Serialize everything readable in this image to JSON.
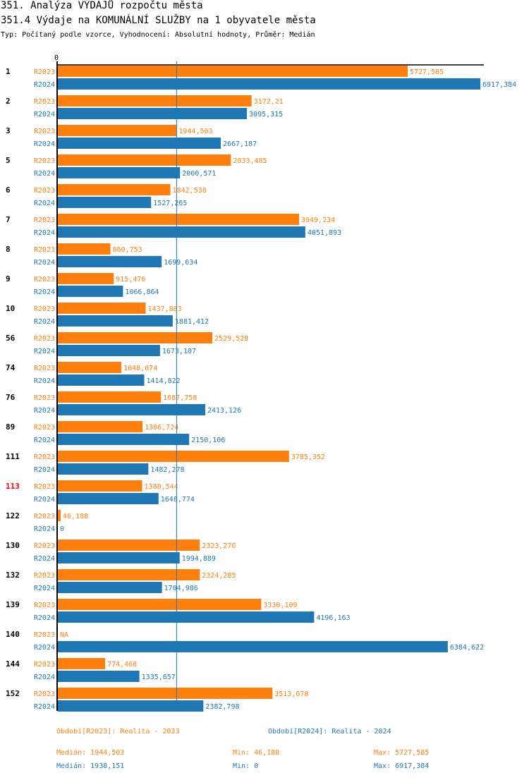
{
  "header": {
    "title": "351. Analýza VÝDAJŮ rozpočtu města",
    "subtitle": "351.4 Výdaje na KOMUNÁLNÍ SLUŽBY na 1 obyvatele města",
    "info": "Typ: Počítaný podle vzorce, Vyhodnocení: Absolutní hodnoty, Průměr: Medián"
  },
  "colors": {
    "r2023": "#ff7f0e",
    "r2024": "#1f77b4",
    "highlight": "#ff0000",
    "axis": "#000000"
  },
  "chart_data": {
    "type": "bar",
    "orientation": "horizontal",
    "title": "351.4 Výdaje na KOMUNÁLNÍ SLUŽBY na 1 obyvatele města",
    "xlabel": "",
    "ylabel": "",
    "x_tick_labels": [
      "0"
    ],
    "xlim": [
      0,
      6917.384
    ],
    "median_line": 1944.503,
    "highlighted_category": "113",
    "categories": [
      "1",
      "2",
      "3",
      "5",
      "6",
      "7",
      "8",
      "9",
      "10",
      "56",
      "74",
      "76",
      "89",
      "111",
      "113",
      "122",
      "130",
      "132",
      "139",
      "140",
      "144",
      "152"
    ],
    "series": [
      {
        "name": "R2023",
        "values": [
          5727.585,
          3172.21,
          1944.503,
          2833.485,
          1842.538,
          3949.234,
          860.753,
          915.476,
          1437.883,
          2529.528,
          1040.074,
          1687.758,
          1386.724,
          3785.352,
          1380.544,
          46.188,
          2323.276,
          2324.285,
          3330.109,
          null,
          774.468,
          3513.678
        ],
        "labels": [
          "5727,585",
          "3172,21",
          "1944,503",
          "2833,485",
          "1842,538",
          "3949,234",
          "860,753",
          "915,476",
          "1437,883",
          "2529,528",
          "1040,074",
          "1687,758",
          "1386,724",
          "3785,352",
          "1380,544",
          "46,188",
          "2323,276",
          "2324,285",
          "3330,109",
          "NA",
          "774,468",
          "3513,678"
        ]
      },
      {
        "name": "R2024",
        "values": [
          6917.384,
          3095.315,
          2667.187,
          2000.571,
          1527.265,
          4051.893,
          1699.634,
          1066.864,
          1881.412,
          1673.107,
          1414.822,
          2413.126,
          2150.106,
          1482.278,
          1648.774,
          0,
          1994.889,
          1704.986,
          4196.163,
          6384.622,
          1335.657,
          2382.798
        ],
        "labels": [
          "6917,384",
          "3095,315",
          "2667,187",
          "2000,571",
          "1527,265",
          "4051,893",
          "1699,634",
          "1066,864",
          "1881,412",
          "1673,107",
          "1414,822",
          "2413,126",
          "2150,106",
          "1482,278",
          "1648,774",
          "0",
          "1994,889",
          "1704,986",
          "4196,163",
          "6384,622",
          "1335,657",
          "2382,798"
        ]
      }
    ],
    "legend": {
      "r2023": "Období[R2023]: Realita - 2023",
      "r2024": "Období[R2024]: Realita - 2024",
      "placement": "bottom"
    },
    "stats": {
      "r2023": {
        "median": "Medián: 1944,503",
        "min": "Min: 46,188",
        "max": "Max: 5727,585"
      },
      "r2024": {
        "median": "Medián: 1938,151",
        "min": "Min: 0",
        "max": "Max: 6917,384"
      }
    }
  }
}
